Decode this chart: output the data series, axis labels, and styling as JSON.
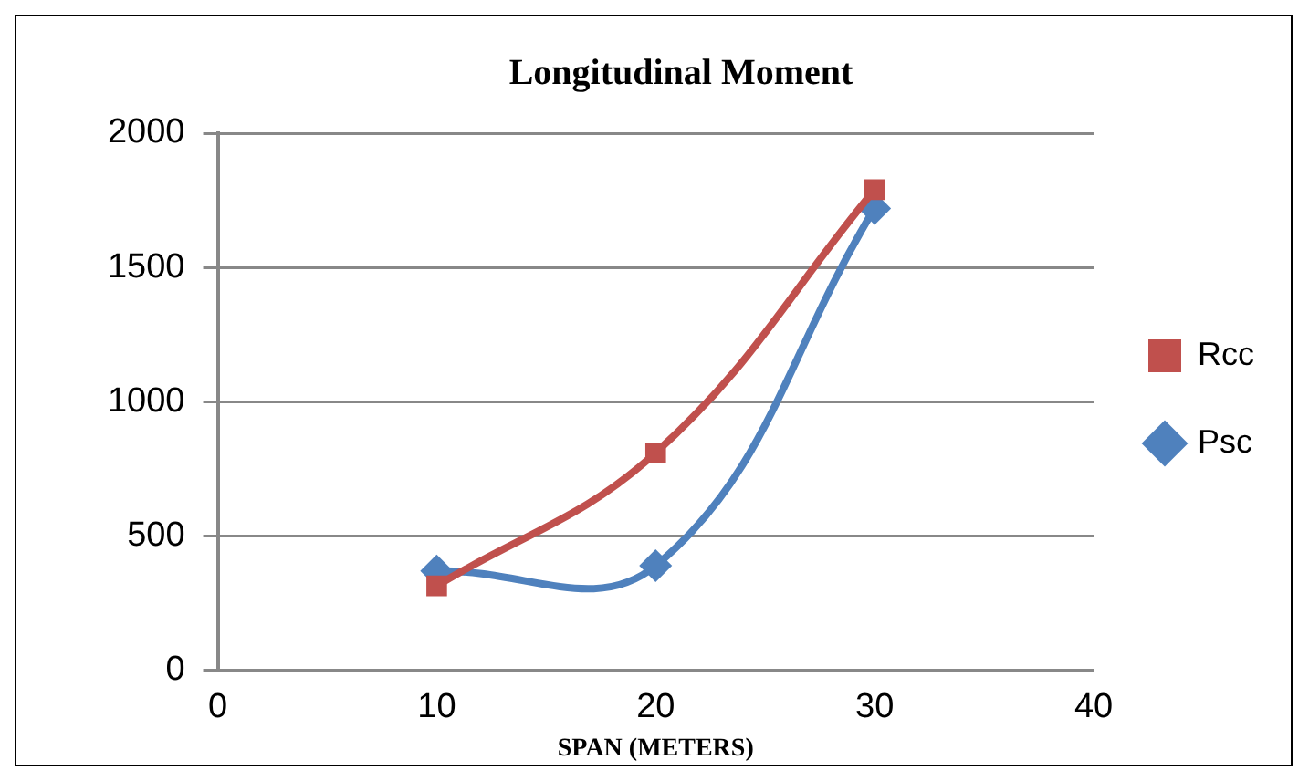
{
  "chart_data": {
    "type": "line",
    "title": "Longitudinal Moment",
    "xlabel": "SPAN (METERS)",
    "x": [
      10,
      20,
      30
    ],
    "series": [
      {
        "name": "Rcc",
        "color": "#c0504d",
        "values": [
          315,
          810,
          1790
        ],
        "marker": "square"
      },
      {
        "name": "Psc",
        "color": "#4f81bd",
        "values": [
          370,
          390,
          1720
        ],
        "marker": "diamond"
      }
    ],
    "xlim": [
      0,
      40
    ],
    "xticks": [
      0,
      10,
      20,
      30,
      40
    ],
    "ylim": [
      0,
      2000
    ],
    "yticks": [
      0,
      500,
      1000,
      1500,
      2000
    ],
    "grid": "y",
    "legend": "right"
  }
}
